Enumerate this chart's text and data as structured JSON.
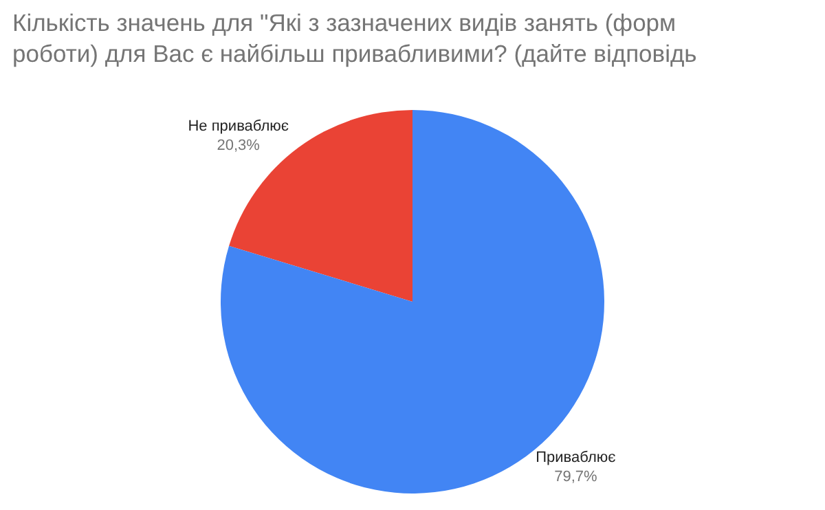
{
  "chart_data": {
    "type": "pie",
    "title": "Кількість значень для \"Які з зазначених видів занять (форм роботи) для Вас є найбільш привабливими? (дайте відповідь",
    "categories": [
      "Не приваблює",
      "Приваблює"
    ],
    "values": [
      20.3,
      79.7
    ],
    "colors": [
      "#ea4335",
      "#4285f4"
    ],
    "value_labels": [
      "20,3%",
      "79,7%"
    ],
    "legend": false
  }
}
